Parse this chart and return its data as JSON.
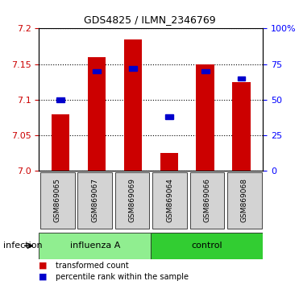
{
  "title": "GDS4825 / ILMN_2346769",
  "samples": [
    "GSM869065",
    "GSM869067",
    "GSM869069",
    "GSM869064",
    "GSM869066",
    "GSM869068"
  ],
  "groups": [
    "influenza A",
    "influenza A",
    "influenza A",
    "control",
    "control",
    "control"
  ],
  "group_labels": [
    "influenza A",
    "control"
  ],
  "influenza_color": "#90EE90",
  "control_color": "#32CD32",
  "bar_color": "#CC0000",
  "blue_color": "#0000CC",
  "ylim_left": [
    7.0,
    7.2
  ],
  "ylim_right": [
    0,
    100
  ],
  "yticks_left": [
    7.0,
    7.05,
    7.1,
    7.15,
    7.2
  ],
  "yticks_right": [
    0,
    25,
    50,
    75,
    100
  ],
  "ytick_labels_right": [
    "0",
    "25",
    "50",
    "75",
    "100%"
  ],
  "red_values": [
    7.08,
    7.16,
    7.185,
    7.025,
    7.15,
    7.125
  ],
  "blue_values_pct": [
    50,
    70,
    72,
    38,
    70,
    65
  ],
  "baseline": 7.0,
  "bar_width": 0.5
}
